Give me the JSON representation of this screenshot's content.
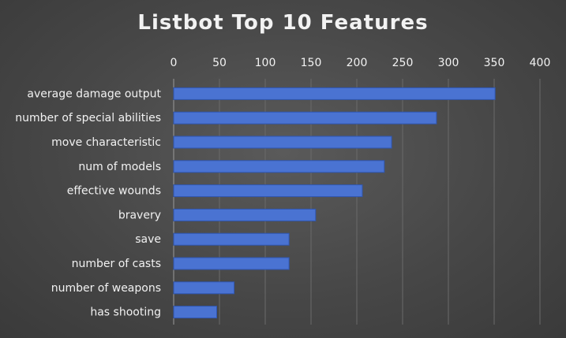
{
  "chart_data": {
    "type": "bar",
    "orientation": "horizontal",
    "title": "Listbot Top 10 Features",
    "xlabel": "",
    "ylabel": "",
    "xlim": [
      0,
      400
    ],
    "x_ticks": [
      0,
      50,
      100,
      150,
      200,
      250,
      300,
      350,
      400
    ],
    "x_axis_position": "top",
    "grid": true,
    "legend": "none",
    "categories": [
      "average damage output",
      "number of special abilities",
      "move characteristic",
      "num of models",
      "effective wounds",
      "bravery",
      "save",
      "number of casts",
      "number of weapons",
      "has shooting"
    ],
    "values": [
      351,
      287,
      238,
      230,
      206,
      155,
      126,
      126,
      66,
      47
    ],
    "colors": {
      "bar": "#4a73d2",
      "bar_edge": "#2f56b0",
      "text": "#f2f2f2",
      "grid": "#6a6a6a"
    }
  }
}
